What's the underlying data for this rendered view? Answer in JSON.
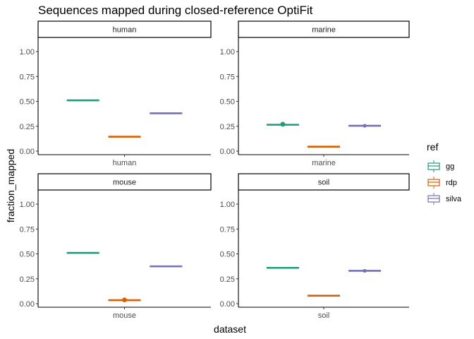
{
  "chart_data": {
    "type": "boxplot",
    "title": "Sequences mapped during closed-reference OptiFit",
    "xlabel": "dataset",
    "ylabel": "fraction_mapped",
    "ylim": [
      0,
      1
    ],
    "yticks": [
      "0.00",
      "0.25",
      "0.50",
      "0.75",
      "1.00"
    ],
    "ytick_values": [
      0,
      0.25,
      0.5,
      0.75,
      1
    ],
    "grid": false,
    "legend": {
      "title": "ref",
      "position": "right",
      "entries": [
        {
          "name": "gg",
          "color": "#1b9e77"
        },
        {
          "name": "rdp",
          "color": "#d95f02"
        },
        {
          "name": "silva",
          "color": "#7570b3"
        }
      ]
    },
    "facets": [
      {
        "strip": "human",
        "xtick": "human",
        "series": [
          {
            "ref": "gg",
            "median": 0.51,
            "outlier": null
          },
          {
            "ref": "rdp",
            "median": 0.145,
            "outlier": null
          },
          {
            "ref": "silva",
            "median": 0.38,
            "outlier": null
          }
        ]
      },
      {
        "strip": "marine",
        "xtick": "marine",
        "series": [
          {
            "ref": "gg",
            "median": 0.265,
            "outlier": 0.27
          },
          {
            "ref": "rdp",
            "median": 0.045,
            "outlier": null
          },
          {
            "ref": "silva",
            "median": 0.255,
            "outlier": 0.255
          }
        ]
      },
      {
        "strip": "mouse",
        "xtick": "mouse",
        "series": [
          {
            "ref": "gg",
            "median": 0.51,
            "outlier": null
          },
          {
            "ref": "rdp",
            "median": 0.035,
            "outlier": 0.038
          },
          {
            "ref": "silva",
            "median": 0.375,
            "outlier": null
          }
        ]
      },
      {
        "strip": "soil",
        "xtick": "soil",
        "series": [
          {
            "ref": "gg",
            "median": 0.36,
            "outlier": null
          },
          {
            "ref": "rdp",
            "median": 0.08,
            "outlier": null
          },
          {
            "ref": "silva",
            "median": 0.33,
            "outlier": 0.33
          }
        ]
      }
    ]
  }
}
